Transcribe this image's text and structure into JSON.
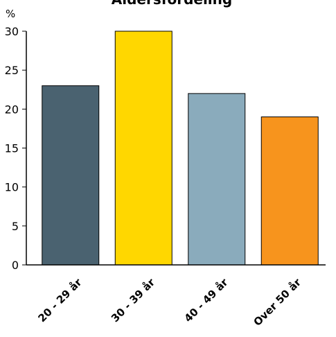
{
  "chart_data": {
    "type": "bar",
    "title": "Aldersfordeling",
    "y_unit_label": "%",
    "categories": [
      "20 - 29 år",
      "30 - 39 år",
      "40 - 49 år",
      "Over 50  år"
    ],
    "values": [
      23,
      30,
      22,
      19
    ],
    "colors": [
      "#4a6270",
      "#ffd700",
      "#8aabbc",
      "#f7941d"
    ],
    "ylim": [
      0,
      30
    ],
    "yticks": [
      0,
      5,
      10,
      15,
      20,
      25,
      30
    ],
    "grid": false,
    "xlabel": "",
    "ylabel": ""
  }
}
